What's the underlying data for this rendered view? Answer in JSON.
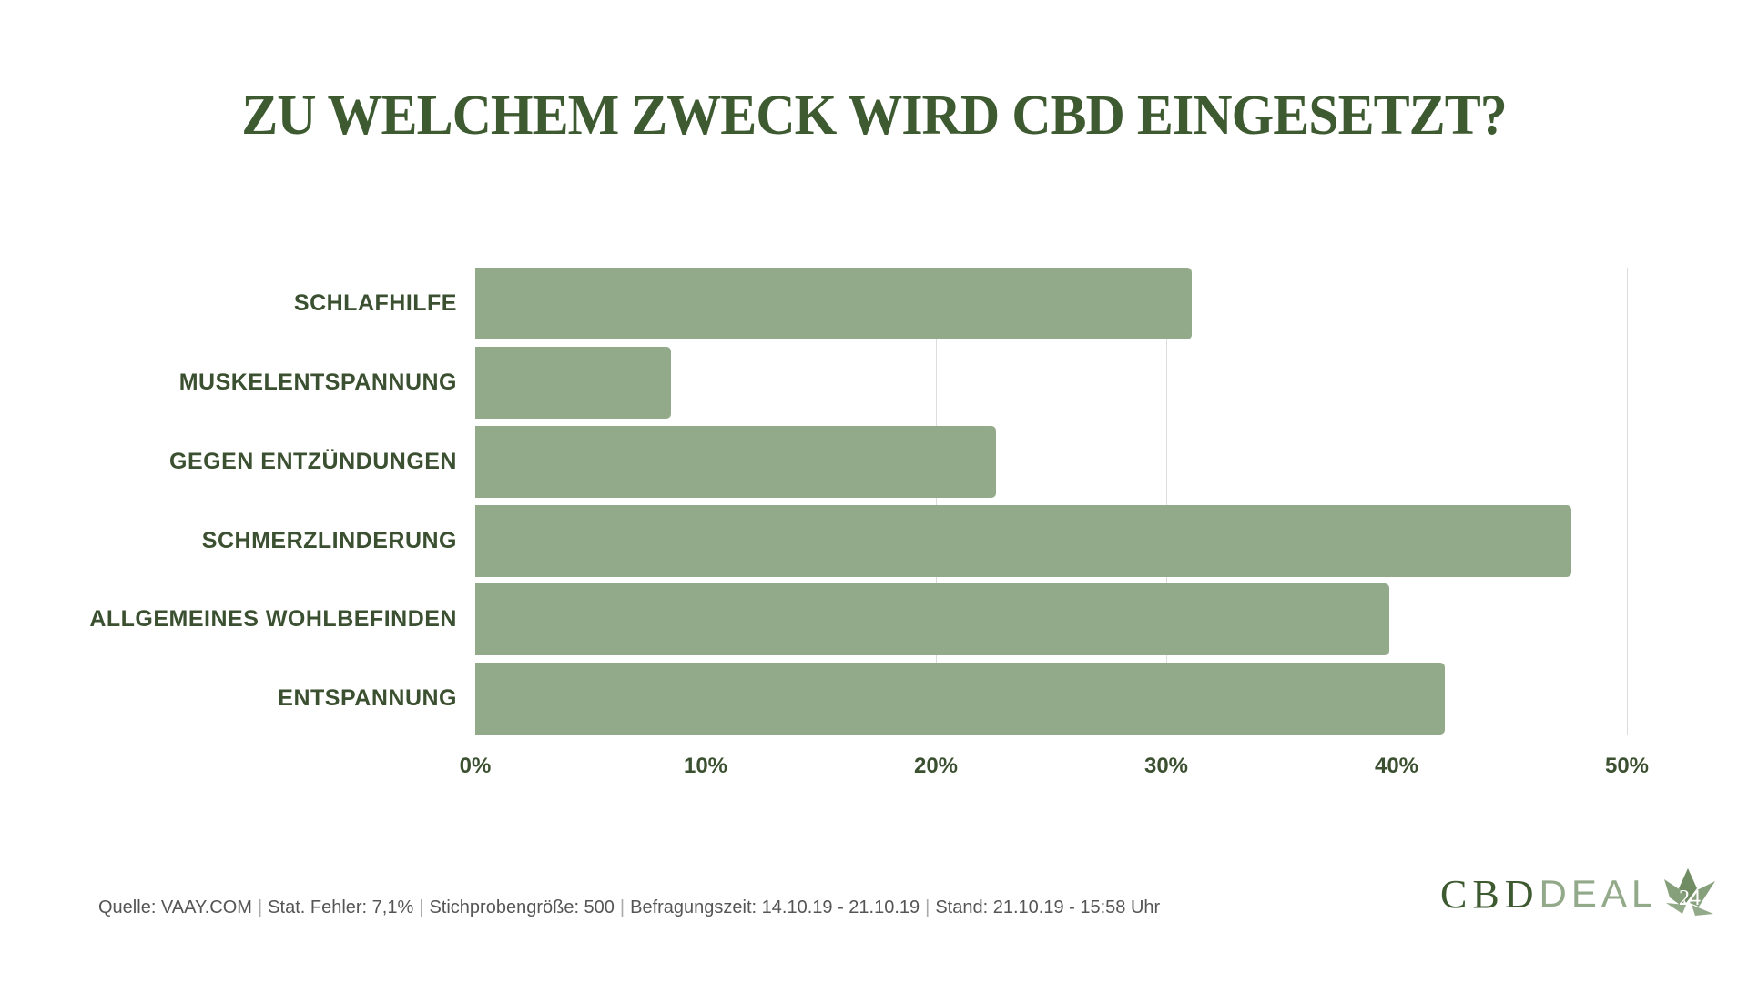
{
  "title": "ZU WELCHEM ZWECK WIRD CBD EINGESETZT?",
  "colors": {
    "title": "#3d5a30",
    "bar": "#93aa8a",
    "label": "#3b5030",
    "grid": "#dcdcdc",
    "footer": "#555555"
  },
  "chart_data": {
    "type": "bar",
    "orientation": "horizontal",
    "title": "ZU WELCHEM ZWECK WIRD CBD EINGESETZT?",
    "categories": [
      "SCHLAFHILFE",
      "MUSKELENTSPANNUNG",
      "GEGEN ENTZÜNDUNGEN",
      "SCHMERZLINDERUNG",
      "ALLGEMEINES WOHLBEFINDEN",
      "ENTSPANNUNG"
    ],
    "values": [
      31.1,
      8.5,
      22.6,
      47.6,
      39.7,
      42.1
    ],
    "unit": "%",
    "xlabel": "",
    "ylabel": "",
    "xlim": [
      0,
      50
    ],
    "xticks": [
      "0%",
      "10%",
      "20%",
      "30%",
      "40%",
      "50%"
    ],
    "grid": "vertical",
    "legend": "none"
  },
  "footer": {
    "items": [
      "Quelle: VAAY.COM",
      "Stat. Fehler: 7,1%",
      "Stichprobengröße: 500",
      "Befragungszeit: 14.10.19 - 21.10.19",
      "Stand: 21.10.19 - 15:58 Uhr"
    ],
    "separator": "|"
  },
  "logo": {
    "part1": "CBD",
    "part2": "DEAL",
    "badge": "24",
    "icon": "cannabis-leaf-icon"
  }
}
